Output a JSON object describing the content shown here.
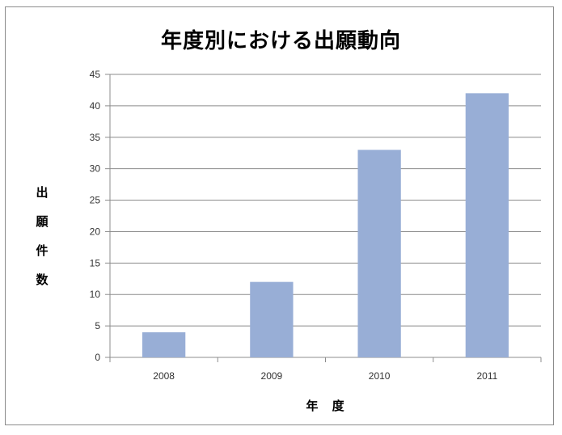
{
  "chart_data": {
    "type": "bar",
    "title": "年度別における出願動向",
    "xlabel": "年 度",
    "ylabel": "出願件数",
    "categories": [
      "2008",
      "2009",
      "2010",
      "2011"
    ],
    "values": [
      4,
      12,
      33,
      42
    ],
    "ylim": [
      0,
      45
    ],
    "ytick_step": 5,
    "grid": true,
    "legend": "none",
    "bar_color": "#98aed6",
    "grid_color": "#8c8c8c"
  }
}
